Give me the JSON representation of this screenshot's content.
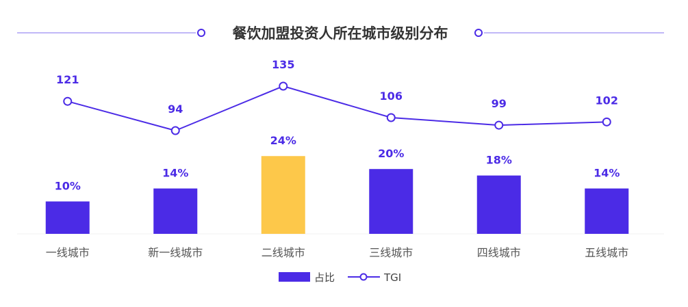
{
  "title": "餐饮加盟投资人所在城市级别分布",
  "colors": {
    "primary": "#4b2be6",
    "highlight": "#fdc84a",
    "title_line": "#9b8cf2",
    "text": "#555555"
  },
  "chart_data": {
    "type": "bar",
    "title": "餐饮加盟投资人所在城市级别分布",
    "categories": [
      "一线城市",
      "新一线城市",
      "二线城市",
      "三线城市",
      "四线城市",
      "五线城市"
    ],
    "series": [
      {
        "name": "占比",
        "type": "bar",
        "values": [
          10,
          14,
          24,
          20,
          18,
          14
        ],
        "labels": [
          "10%",
          "14%",
          "24%",
          "20%",
          "18%",
          "14%"
        ],
        "highlight_index": 2
      },
      {
        "name": "TGI",
        "type": "line",
        "values": [
          121,
          94,
          135,
          106,
          99,
          102
        ],
        "labels": [
          "121",
          "94",
          "135",
          "106",
          "99",
          "102"
        ]
      }
    ],
    "legend_position": "bottom",
    "grid": false
  },
  "legend": {
    "bar_label": "占比",
    "line_label": "TGI"
  }
}
